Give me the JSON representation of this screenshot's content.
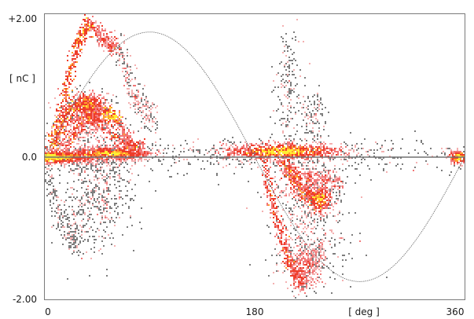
{
  "chart_data": {
    "type": "heatmap",
    "subtype": "phase-resolved partial discharge pattern",
    "title": "",
    "x_ticks": [
      "0",
      "180",
      "360"
    ],
    "x_tick_values": [
      0,
      180,
      360
    ],
    "xlabel": "[ deg ]",
    "xlim": [
      0,
      360
    ],
    "y_ticks": [
      "+2.00",
      "0.0",
      "-2.00"
    ],
    "y_tick_values": [
      2.0,
      0.0,
      -2.0
    ],
    "ylabel": "[ nC ]",
    "ylim": [
      -2.0,
      2.0
    ],
    "reference_sine": {
      "amplitude": 1.75,
      "period_deg": 360,
      "peak_phase_deg": 90
    },
    "color_scale": [
      "#7a7a7a",
      "#f3a8a8",
      "#f06a6a",
      "#ee2a1a",
      "#ffee33"
    ],
    "clusters": [
      {
        "x": 5,
        "y": 0.0,
        "sx": 22,
        "sy": 0.05,
        "n": 1100,
        "heat": 0.95
      },
      {
        "x": 55,
        "y": 0.05,
        "sx": 20,
        "sy": 0.05,
        "n": 700,
        "heat": 0.85
      },
      {
        "x": 205,
        "y": 0.08,
        "sx": 28,
        "sy": 0.06,
        "n": 1000,
        "heat": 0.9
      },
      {
        "x": 355,
        "y": 0.0,
        "sx": 5,
        "sy": 0.05,
        "n": 220,
        "heat": 0.85
      },
      {
        "x": 38,
        "y": 0.75,
        "sx": 8,
        "sy": 0.09,
        "n": 320,
        "heat": 0.75
      },
      {
        "x": 38,
        "y": 0.55,
        "sx": 9,
        "sy": 0.12,
        "n": 280,
        "heat": 0.6
      },
      {
        "x": 28,
        "y": 0.3,
        "sx": 18,
        "sy": 0.25,
        "n": 300,
        "heat": 0.3
      },
      {
        "x": 48,
        "y": -0.35,
        "sx": 16,
        "sy": 0.35,
        "n": 450,
        "heat": 0.08
      },
      {
        "x": 40,
        "y": -0.9,
        "sx": 14,
        "sy": 0.3,
        "n": 160,
        "heat": 0.04
      },
      {
        "x": 236,
        "y": -0.6,
        "sx": 6,
        "sy": 0.1,
        "n": 260,
        "heat": 0.85
      },
      {
        "x": 225,
        "y": -0.35,
        "sx": 14,
        "sy": 0.15,
        "n": 320,
        "heat": 0.4
      },
      {
        "x": 223,
        "y": -1.55,
        "sx": 8,
        "sy": 0.2,
        "n": 280,
        "heat": 0.45
      },
      {
        "x": 210,
        "y": 0.85,
        "sx": 6,
        "sy": 0.45,
        "n": 200,
        "heat": 0.02
      },
      {
        "x": 232,
        "y": 0.55,
        "sx": 5,
        "sy": 0.2,
        "n": 110,
        "heat": 0.12
      },
      {
        "x": 225,
        "y": -1.0,
        "sx": 18,
        "sy": 0.45,
        "n": 420,
        "heat": 0.12
      },
      {
        "x": 135,
        "y": 0.0,
        "sx": 45,
        "sy": 0.15,
        "n": 150,
        "heat": 0.02
      },
      {
        "x": 290,
        "y": 0.0,
        "sx": 35,
        "sy": 0.12,
        "n": 120,
        "heat": 0.02
      }
    ],
    "arcs": [
      {
        "x0": 8,
        "x1": 40,
        "y0": 0.1,
        "y1": 1.85,
        "n": 380,
        "w": 0.07,
        "heat": 0.55
      },
      {
        "x0": 40,
        "x1": 62,
        "y0": 1.85,
        "y1": 1.55,
        "n": 220,
        "w": 0.06,
        "heat": 0.35
      },
      {
        "x0": 62,
        "x1": 95,
        "y0": 1.55,
        "y1": 0.55,
        "n": 250,
        "w": 0.12,
        "heat": 0.12
      },
      {
        "x0": 5,
        "x1": 34,
        "y0": 0.15,
        "y1": 0.75,
        "n": 260,
        "w": 0.06,
        "heat": 0.55
      },
      {
        "x0": 34,
        "x1": 85,
        "y0": 0.75,
        "y1": 0.1,
        "n": 260,
        "w": 0.07,
        "heat": 0.5
      },
      {
        "x0": 15,
        "x1": 50,
        "y0": 0.1,
        "y1": 0.65,
        "n": 220,
        "w": 0.06,
        "heat": 0.45
      },
      {
        "x0": 50,
        "x1": 62,
        "y0": 0.65,
        "y1": 0.55,
        "n": 110,
        "w": 0.05,
        "heat": 0.7
      },
      {
        "x0": 62,
        "x1": 82,
        "y0": 0.55,
        "y1": 0.1,
        "n": 180,
        "w": 0.06,
        "heat": 0.35
      },
      {
        "x0": 0,
        "x1": 30,
        "y0": -0.15,
        "y1": -1.2,
        "n": 200,
        "w": 0.12,
        "heat": 0.02
      },
      {
        "x0": 188,
        "x1": 222,
        "y0": -0.05,
        "y1": -1.75,
        "n": 420,
        "w": 0.07,
        "heat": 0.45
      },
      {
        "x0": 205,
        "x1": 236,
        "y0": -0.1,
        "y1": -0.6,
        "n": 280,
        "w": 0.07,
        "heat": 0.55
      },
      {
        "x0": 200,
        "x1": 255,
        "y0": -0.1,
        "y1": -0.35,
        "n": 200,
        "w": 0.06,
        "heat": 0.35
      },
      {
        "x0": 222,
        "x1": 240,
        "y0": -1.75,
        "y1": -1.3,
        "n": 140,
        "w": 0.08,
        "heat": 0.18
      }
    ]
  }
}
